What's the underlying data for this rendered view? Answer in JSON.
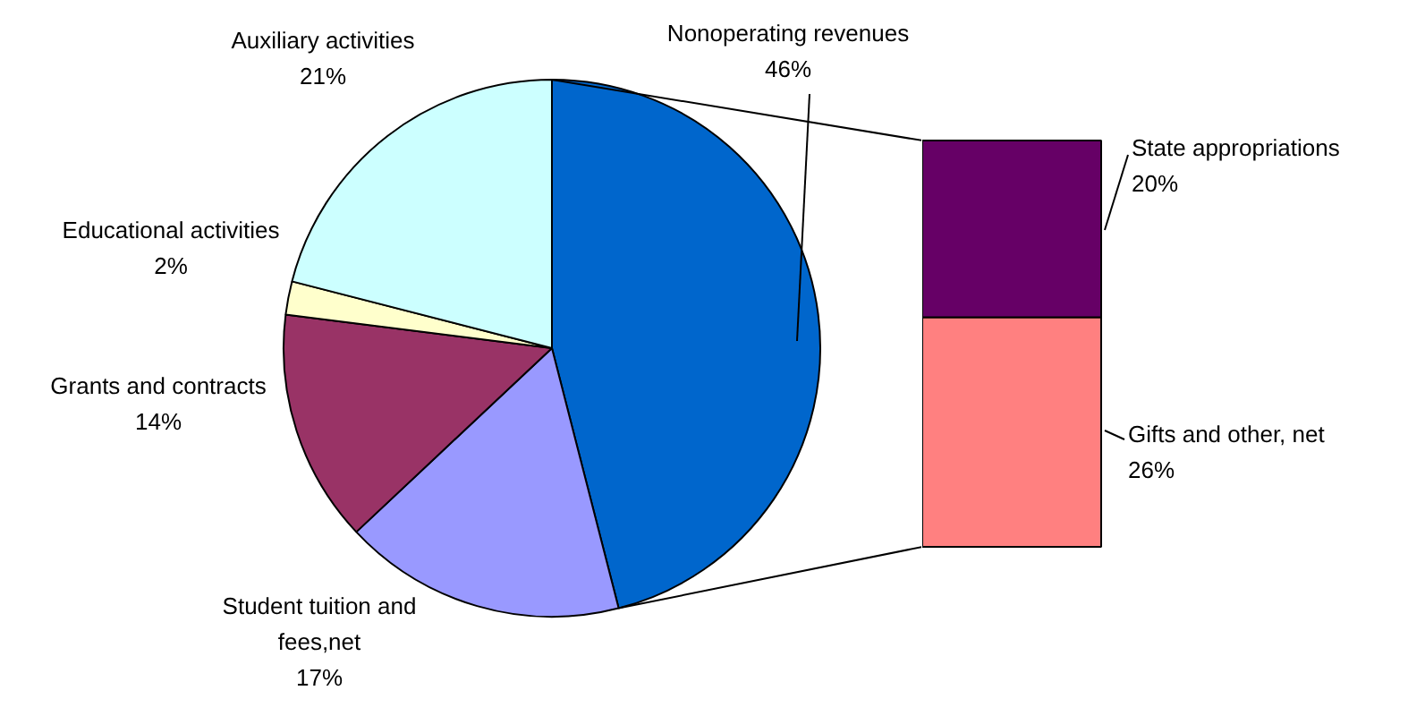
{
  "chart_data": [
    {
      "type": "pie",
      "categories": [
        "Nonoperating revenues",
        "Student tuition and fees,net",
        "Grants and contracts",
        "Educational activities",
        "Auxiliary activities"
      ],
      "values": [
        46,
        17,
        14,
        2,
        21
      ],
      "colors": [
        "#0066cc",
        "#9999ff",
        "#993366",
        "#ffffcc",
        "#ccffff"
      ],
      "value_labels": [
        "46%",
        "17%",
        "14%",
        "2%",
        "21%"
      ]
    },
    {
      "type": "bar",
      "stacked": true,
      "tick_labels": false,
      "categories": [
        null
      ],
      "series": [
        {
          "name": "Gifts and other, net",
          "color": "#ff8080",
          "values": [
            26
          ],
          "value_labels": [
            "26%"
          ]
        },
        {
          "name": "State appropriations",
          "color": "#660066",
          "values": [
            20
          ],
          "value_labels": [
            "20%"
          ]
        }
      ]
    }
  ]
}
